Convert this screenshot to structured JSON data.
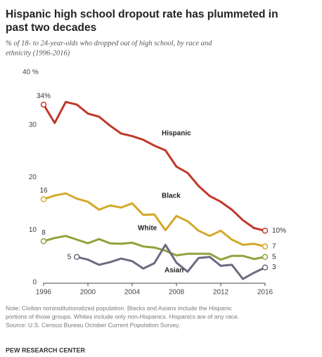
{
  "chart_data": {
    "type": "line",
    "title": [
      "Hispanic high school dropout rate has plummeted in",
      "past two decades"
    ],
    "subtitle": [
      "% of 18- to 24-year-olds who dropped out of high school, by race and",
      "ethnicity (1996-2016)"
    ],
    "x": [
      1996,
      1997,
      1998,
      1999,
      2000,
      2001,
      2002,
      2003,
      2004,
      2005,
      2006,
      2007,
      2008,
      2009,
      2010,
      2011,
      2012,
      2013,
      2014,
      2015,
      2016
    ],
    "series": [
      {
        "name": "Hispanic",
        "color": "#c0392b",
        "values": [
          34,
          30.5,
          34.5,
          34,
          32.3,
          31.7,
          30,
          28.5,
          28,
          27.3,
          26.2,
          25.3,
          22.2,
          21,
          18.5,
          16.6,
          15.5,
          14,
          12,
          10.5,
          10
        ],
        "value_labels": [
          "34%",
          null,
          null,
          null,
          null,
          null,
          null,
          null,
          null,
          null,
          null,
          null,
          null,
          null,
          null,
          null,
          null,
          null,
          null,
          null,
          "10%"
        ]
      },
      {
        "name": "Black",
        "color": "#d4a82a",
        "values": [
          16,
          16.7,
          17.1,
          16.1,
          15.5,
          14,
          14.8,
          14.4,
          15.2,
          13,
          13.1,
          10.1,
          12.8,
          11.8,
          10,
          9,
          10,
          8.3,
          7.3,
          7.5,
          7
        ],
        "value_labels": [
          "16",
          null,
          null,
          null,
          null,
          null,
          null,
          null,
          null,
          null,
          null,
          null,
          null,
          null,
          null,
          null,
          null,
          null,
          null,
          null,
          "7"
        ]
      },
      {
        "name": "White",
        "color": "#8fa33c",
        "values": [
          8,
          8.6,
          9,
          8.3,
          7.6,
          8.4,
          7.6,
          7.5,
          7.7,
          7,
          6.8,
          6.2,
          5.3,
          5.6,
          5.6,
          5.6,
          4.5,
          5.2,
          5.2,
          4.6,
          5
        ],
        "value_labels": [
          "8",
          null,
          null,
          null,
          null,
          null,
          null,
          null,
          null,
          null,
          null,
          null,
          null,
          null,
          null,
          null,
          null,
          null,
          null,
          null,
          "5"
        ]
      },
      {
        "name": "Asian",
        "color": "#6f6880",
        "values": [
          null,
          null,
          null,
          5,
          4.5,
          3.5,
          4,
          4.7,
          4.2,
          2.8,
          3.8,
          7.3,
          3.9,
          2.2,
          4.8,
          5,
          3.3,
          3.5,
          0.8,
          2,
          3
        ],
        "value_labels": [
          null,
          null,
          null,
          "5",
          null,
          null,
          null,
          null,
          null,
          null,
          null,
          null,
          null,
          null,
          null,
          null,
          null,
          null,
          null,
          null,
          "3"
        ]
      }
    ],
    "xlim": [
      1996,
      2016
    ],
    "xticks": [
      1996,
      2000,
      2004,
      2008,
      2012,
      2016
    ],
    "ylim": [
      0,
      40
    ],
    "yticks": [
      0,
      10,
      20,
      30,
      {
        "value": 40,
        "label": "40 %"
      }
    ],
    "note": [
      "Note: Civilian noninstitutionalized population. Blacks and Asians include the Hispanic",
      "portions of those groups. Whites include only non-Hispanics. Hispanics are of any race.",
      "Source: U.S. Census Bureau October Current Population Survey."
    ],
    "source": "",
    "brand": "PEW RESEARCH CENTER"
  }
}
